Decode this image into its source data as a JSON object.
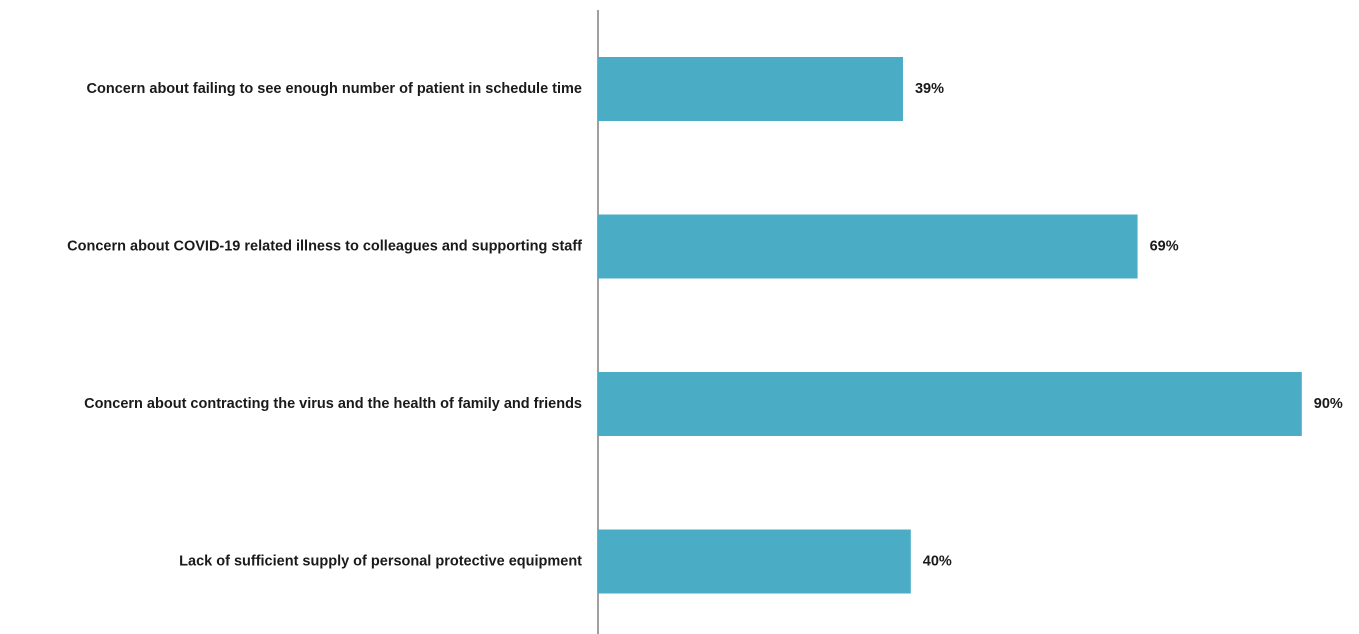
{
  "chart_data": {
    "type": "bar",
    "orientation": "horizontal",
    "categories": [
      "Concern about failing to see enough number of patient in schedule time",
      "Concern about COVID-19 related illness to colleagues and supporting staff",
      "Concern about contracting the virus and the health of family and friends",
      "Lack of sufficient supply of personal protective equipment"
    ],
    "values": [
      39,
      69,
      90,
      40
    ],
    "value_labels": [
      "39%",
      "69%",
      "90%",
      "40%"
    ],
    "xlim": [
      0,
      100
    ],
    "title": "",
    "xlabel": "",
    "ylabel": "",
    "grid": false,
    "bar_color": "#4BACC6",
    "axis_color": "#808080"
  }
}
